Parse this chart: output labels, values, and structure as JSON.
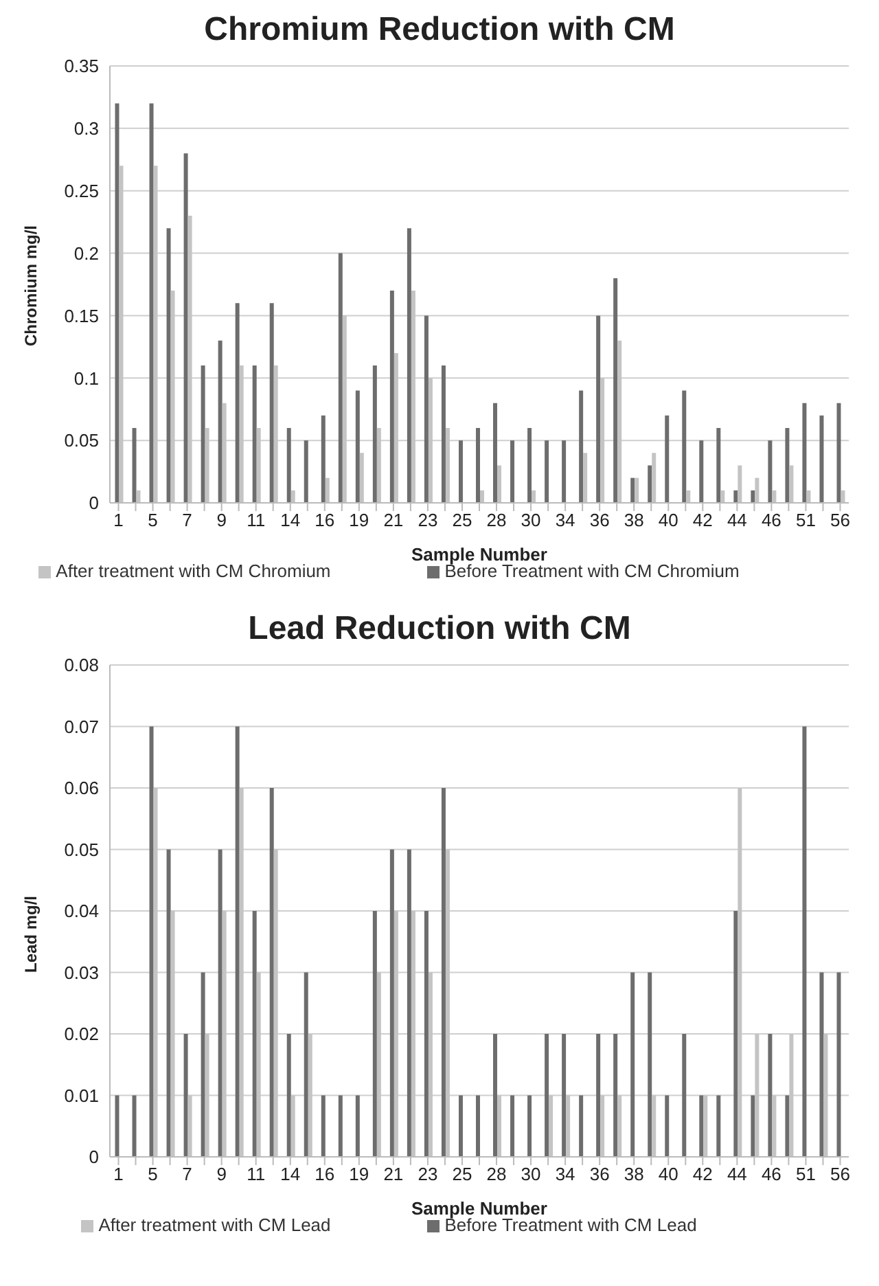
{
  "chart_data": [
    {
      "type": "bar",
      "title": "Chromium Reduction with CM",
      "xlabel": "Sample Number",
      "ylabel": "Chromium mg/l",
      "categories": [
        "1",
        null,
        "5",
        null,
        "7",
        null,
        "9",
        null,
        "11",
        null,
        "14",
        null,
        "16",
        null,
        "19",
        null,
        "21",
        null,
        "23",
        null,
        "25",
        null,
        "28",
        null,
        "30",
        null,
        "34",
        null,
        "36",
        null,
        "38",
        null,
        "40",
        null,
        "42",
        null,
        "44",
        null,
        "46",
        null,
        "51",
        null,
        "56"
      ],
      "series": [
        {
          "name": "Before Treatment with CM Chromium",
          "color": "#6d6d6d",
          "values": [
            0.32,
            0.06,
            0.32,
            0.22,
            0.28,
            0.11,
            0.13,
            0.16,
            0.11,
            0.16,
            0.06,
            0.05,
            0.07,
            0.2,
            0.09,
            0.11,
            0.17,
            0.22,
            0.15,
            0.11,
            0.05,
            0.06,
            0.08,
            0.05,
            0.06,
            0.05,
            0.05,
            0.09,
            0.15,
            0.18,
            0.02,
            0.03,
            0.07,
            0.09,
            0.05,
            0.06,
            0.01,
            0.01,
            0.05,
            0.06,
            0.08,
            0.07,
            0.08
          ]
        },
        {
          "name": "After treatment with CM Chromium",
          "color": "#c4c4c4",
          "values": [
            0.27,
            0.01,
            0.27,
            0.17,
            0.23,
            0.06,
            0.08,
            0.11,
            0.06,
            0.11,
            0.01,
            0,
            0.02,
            0.15,
            0.04,
            0.06,
            0.12,
            0.17,
            0.1,
            0.06,
            0,
            0.01,
            0.03,
            0,
            0.01,
            0,
            0,
            0.04,
            0.1,
            0.13,
            0.02,
            0.04,
            0,
            0.01,
            0,
            0.01,
            0.03,
            0.02,
            0.01,
            0.03,
            0.01,
            0,
            0.01
          ]
        }
      ],
      "ylim": [
        0,
        0.35
      ],
      "yticks": [
        0,
        0.05,
        0.1,
        0.15,
        0.2,
        0.25,
        0.3,
        0.35
      ],
      "grid": "y",
      "legend": "bottom"
    },
    {
      "type": "bar",
      "title": "Lead Reduction with CM",
      "xlabel": "Sample Number",
      "ylabel": "Lead mg/l",
      "categories": [
        "1",
        null,
        "5",
        null,
        "7",
        null,
        "9",
        null,
        "11",
        null,
        "14",
        null,
        "16",
        null,
        "19",
        null,
        "21",
        null,
        "23",
        null,
        "25",
        null,
        "28",
        null,
        "30",
        null,
        "34",
        null,
        "36",
        null,
        "38",
        null,
        "40",
        null,
        "42",
        null,
        "44",
        null,
        "46",
        null,
        "51",
        null,
        "56"
      ],
      "series": [
        {
          "name": "Before Treatment with CM Lead",
          "color": "#6d6d6d",
          "values": [
            0.01,
            0.01,
            0.07,
            0.05,
            0.02,
            0.03,
            0.05,
            0.07,
            0.04,
            0.06,
            0.02,
            0.03,
            0.01,
            0.01,
            0.01,
            0.04,
            0.05,
            0.05,
            0.04,
            0.06,
            0.01,
            0.01,
            0.02,
            0.01,
            0.01,
            0.02,
            0.02,
            0.01,
            0.02,
            0.02,
            0.03,
            0.03,
            0.01,
            0.02,
            0.01,
            0.01,
            0.04,
            0.01,
            0.02,
            0.01,
            0.07,
            0.03,
            0.03
          ]
        },
        {
          "name": "After treatment with CM Lead",
          "color": "#c4c4c4",
          "values": [
            0,
            0,
            0.06,
            0.04,
            0.01,
            0.02,
            0.04,
            0.06,
            0.03,
            0.05,
            0.01,
            0.02,
            0,
            0,
            0,
            0.03,
            0.04,
            0.04,
            0.03,
            0.05,
            0,
            0,
            0.01,
            0,
            0,
            0.01,
            0.01,
            0,
            0.01,
            0.01,
            0,
            0.01,
            0,
            0,
            0.01,
            0,
            0.06,
            0.02,
            0.01,
            0.02,
            0,
            0.02,
            0
          ]
        }
      ],
      "ylim": [
        0,
        0.08
      ],
      "yticks": [
        0,
        0.01,
        0.02,
        0.03,
        0.04,
        0.05,
        0.06,
        0.07,
        0.08
      ],
      "grid": "y",
      "legend": "bottom"
    }
  ]
}
